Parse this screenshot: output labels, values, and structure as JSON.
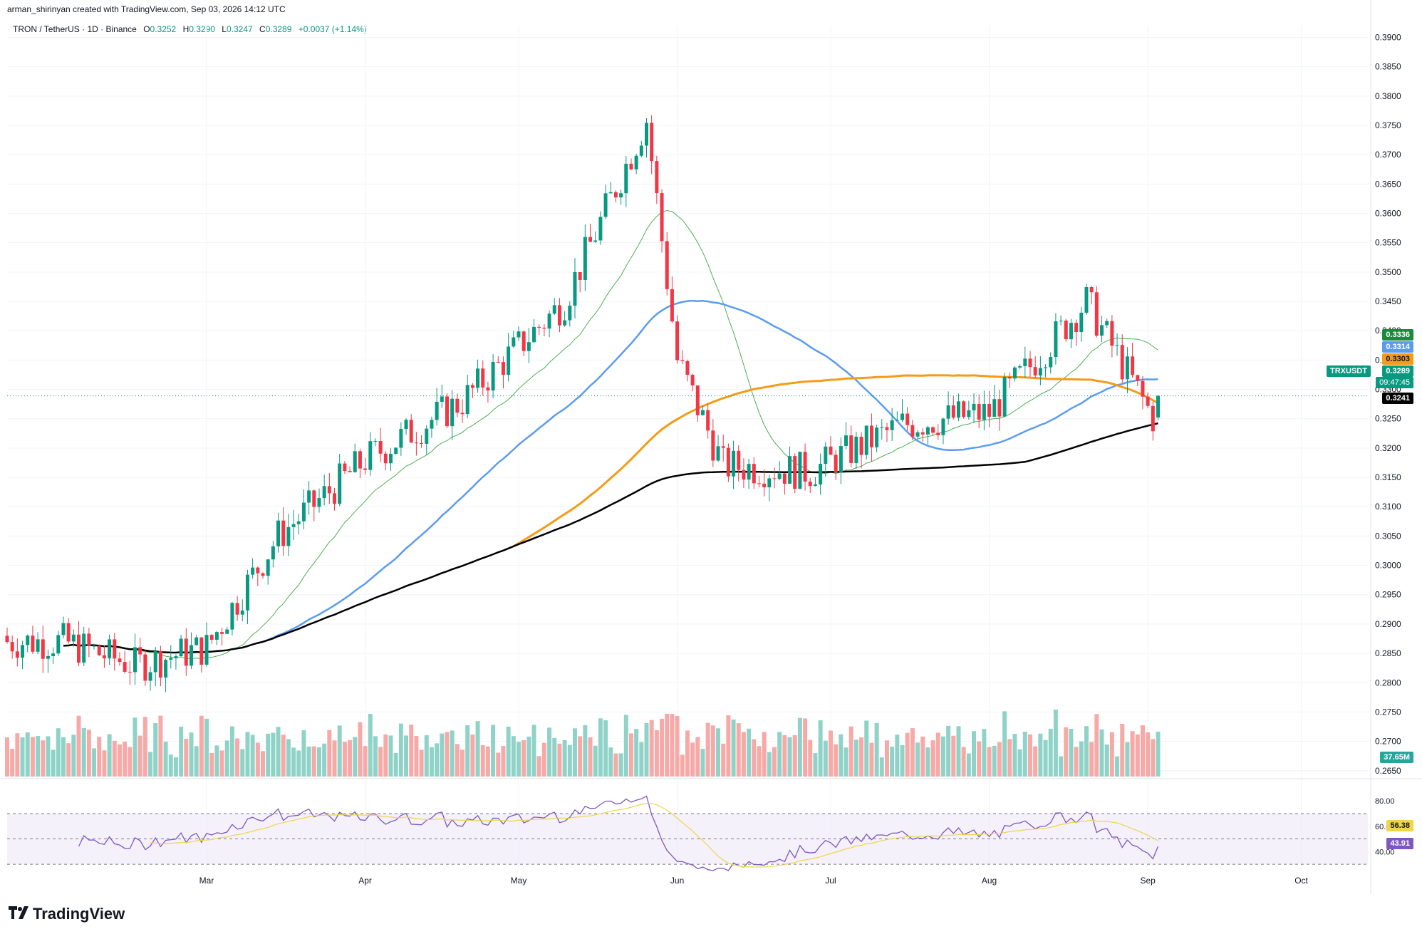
{
  "header": {
    "credit": "arman_shirinyan created with TradingView.com, Sep 03, 2026 14:12 UTC"
  },
  "symbol": {
    "name": "TRON / TetherUS · 1D · Binance",
    "open_label": "O",
    "open": "0.3252",
    "high_label": "H",
    "high": "0.3290",
    "low_label": "L",
    "low": "0.3247",
    "close_label": "C",
    "close": "0.3289",
    "change": "+0.0037 (+1.14%)"
  },
  "price_tags": {
    "ma_green": "0.3336",
    "ma_blue": "0.3314",
    "ma_orange": "0.3303",
    "last_price": "0.3289",
    "countdown": "09:47:45",
    "ma_black": "0.3241",
    "symbol_tag": "TRXUSDT",
    "volume": "37.65M",
    "rsi_ma": "56.38",
    "rsi": "43.91"
  },
  "colors": {
    "up": "#089981",
    "down": "#f23645",
    "vol_up": "#8fd3c8",
    "vol_down": "#f7a9a7",
    "ma_green": "#4caf50",
    "ma_blue": "#5b9cf0",
    "ma_orange": "#f59b16",
    "ma_black": "#000000",
    "rsi_line": "#7e57c2",
    "rsi_ma": "#f0d44a"
  },
  "logo": {
    "text": "TradingView"
  },
  "chart_data": {
    "type": "candlestick",
    "price_ticks": [
      "0.3900",
      "0.3850",
      "0.3800",
      "0.3750",
      "0.3700",
      "0.3650",
      "0.3600",
      "0.3550",
      "0.3500",
      "0.3450",
      "0.3400",
      "0.3350",
      "0.3300",
      "0.3250",
      "0.3200",
      "0.3150",
      "0.3100",
      "0.3050",
      "0.3000",
      "0.2950",
      "0.2900",
      "0.2850",
      "0.2800",
      "0.2750",
      "0.2700",
      "0.2650"
    ],
    "price_range": [
      0.264,
      0.392
    ],
    "rsi_ticks": [
      "80.00",
      "60.00",
      "40.00"
    ],
    "rsi_range": [
      25,
      88
    ],
    "x_labels": [
      "Mar",
      "Apr",
      "May",
      "Jun",
      "Jul",
      "Aug",
      "Sep",
      "Oct"
    ],
    "rsi_band": [
      30,
      70
    ],
    "key_closes": [
      {
        "date": "2026-02-01",
        "close": 0.287
      },
      {
        "date": "2026-02-15",
        "close": 0.283
      },
      {
        "date": "2026-03-01",
        "close": 0.286
      },
      {
        "date": "2026-03-15",
        "close": 0.305
      },
      {
        "date": "2026-04-01",
        "close": 0.318
      },
      {
        "date": "2026-04-20",
        "close": 0.328
      },
      {
        "date": "2026-05-10",
        "close": 0.345
      },
      {
        "date": "2026-05-26",
        "close": 0.376
      },
      {
        "date": "2026-06-01",
        "close": 0.335
      },
      {
        "date": "2026-06-10",
        "close": 0.317
      },
      {
        "date": "2026-06-27",
        "close": 0.316
      },
      {
        "date": "2026-07-15",
        "close": 0.324
      },
      {
        "date": "2026-08-01",
        "close": 0.326
      },
      {
        "date": "2026-08-20",
        "close": 0.345
      },
      {
        "date": "2026-09-02",
        "close": 0.3252
      },
      {
        "date": "2026-09-03",
        "close": 0.3289
      }
    ]
  }
}
